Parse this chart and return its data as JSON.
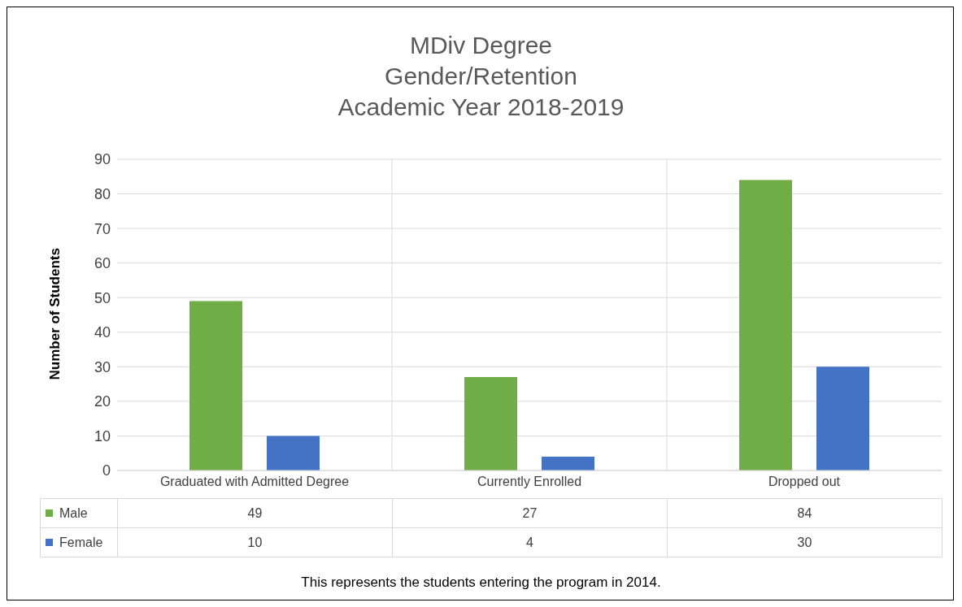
{
  "chart_data": {
    "type": "bar",
    "title": "MDiv Degree\nGender/Retention\nAcademic Year 2018-2019",
    "ylabel": "Number of Students",
    "categories": [
      "Graduated with Admitted Degree",
      "Currently Enrolled",
      "Dropped out"
    ],
    "series": [
      {
        "name": "Male",
        "color": "#70ad47",
        "values": [
          49,
          27,
          84
        ]
      },
      {
        "name": "Female",
        "color": "#4472c4",
        "values": [
          10,
          4,
          30
        ]
      }
    ],
    "ylim": [
      0,
      90
    ],
    "yticks": [
      0,
      10,
      20,
      30,
      40,
      50,
      60,
      70,
      80,
      90
    ],
    "grid": true,
    "legend": "bottom",
    "data_labels": true,
    "annotations": [
      "This represents the students entering the program in 2014."
    ]
  }
}
